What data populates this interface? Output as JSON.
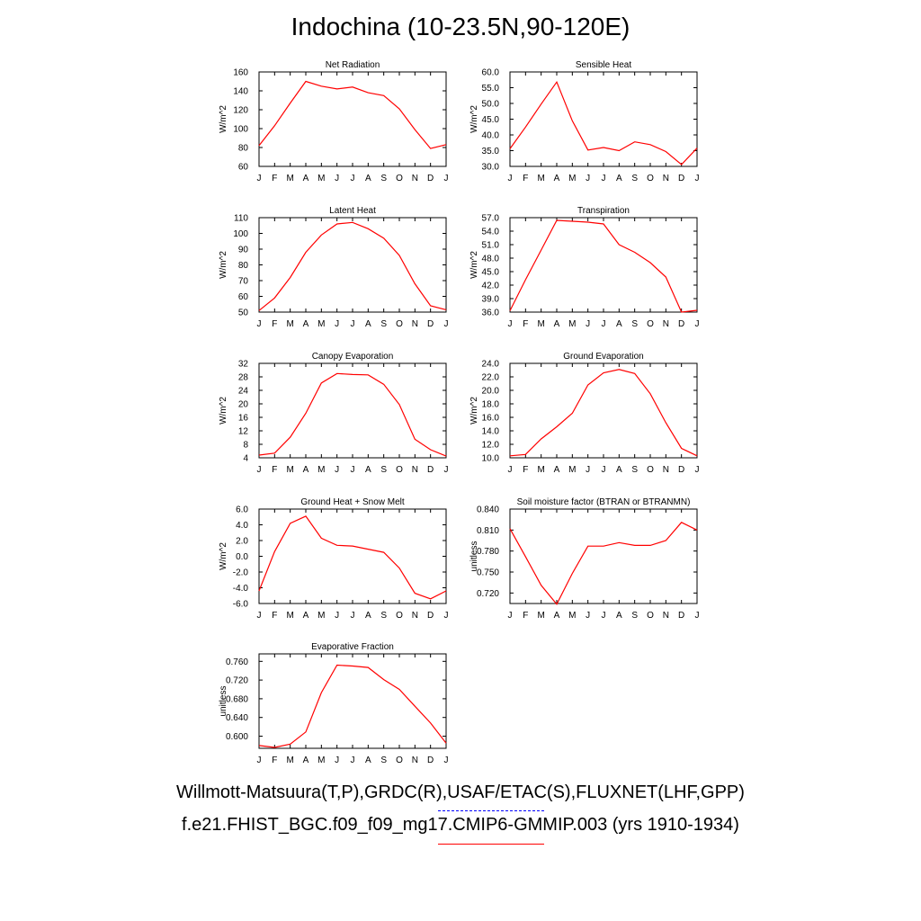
{
  "title": "Indochina (10-23.5N,90-120E)",
  "footer": {
    "obs_label": "Willmott-Matsuura(T,P),GRDC(R),USAF/ETAC(S),FLUXNET(LHF,GPP)",
    "model_label": "f.e21.FHIST_BGC.f09_f09_mg17.CMIP6-GMMIP.003 (yrs 1910-1934)"
  },
  "colors": {
    "model": "#ff0000",
    "obs": "#0000ff",
    "axis": "#000000"
  },
  "chart_data": [
    {
      "type": "line",
      "title": "Net Radiation",
      "ylabel": "W/m^2",
      "ylim": [
        60,
        160
      ],
      "yticks": [
        "60",
        "80",
        "100",
        "120",
        "140",
        "160"
      ],
      "ytick_values": [
        60,
        80,
        100,
        120,
        140,
        160
      ],
      "categories": [
        "J",
        "F",
        "M",
        "A",
        "M",
        "J",
        "J",
        "A",
        "S",
        "O",
        "N",
        "D",
        "J"
      ],
      "series": [
        {
          "values": [
            82,
            103,
            127,
            150,
            145,
            142,
            144,
            138,
            135,
            121,
            99,
            79,
            83
          ]
        }
      ]
    },
    {
      "type": "line",
      "title": "Sensible Heat",
      "ylabel": "W/m^2",
      "ylim": [
        30,
        60
      ],
      "yticks": [
        "30.0",
        "35.0",
        "40.0",
        "45.0",
        "50.0",
        "55.0",
        "60.0"
      ],
      "ytick_values": [
        30,
        35,
        40,
        45,
        50,
        55,
        60
      ],
      "categories": [
        "J",
        "F",
        "M",
        "A",
        "M",
        "J",
        "J",
        "A",
        "S",
        "O",
        "N",
        "D",
        "J"
      ],
      "series": [
        {
          "values": [
            35.6,
            42.5,
            49.8,
            56.8,
            44.5,
            35.2,
            36.0,
            35.0,
            37.8,
            36.9,
            34.7,
            30.6,
            35.8
          ]
        }
      ]
    },
    {
      "type": "line",
      "title": "Latent Heat",
      "ylabel": "W/m^2",
      "ylim": [
        50,
        110
      ],
      "yticks": [
        "50",
        "60",
        "70",
        "80",
        "90",
        "100",
        "110"
      ],
      "ytick_values": [
        50,
        60,
        70,
        80,
        90,
        100,
        110
      ],
      "categories": [
        "J",
        "F",
        "M",
        "A",
        "M",
        "J",
        "J",
        "A",
        "S",
        "O",
        "N",
        "D",
        "J"
      ],
      "series": [
        {
          "values": [
            51,
            59,
            72,
            88,
            99,
            106,
            107,
            103,
            97,
            86,
            68,
            54,
            51.5
          ]
        }
      ]
    },
    {
      "type": "line",
      "title": "Transpiration",
      "ylabel": "W/m^2",
      "ylim": [
        36,
        57
      ],
      "yticks": [
        "36.0",
        "39.0",
        "42.0",
        "45.0",
        "48.0",
        "51.0",
        "54.0",
        "57.0"
      ],
      "ytick_values": [
        36,
        39,
        42,
        45,
        48,
        51,
        54,
        57
      ],
      "categories": [
        "J",
        "F",
        "M",
        "A",
        "M",
        "J",
        "J",
        "A",
        "S",
        "O",
        "N",
        "D",
        "J"
      ],
      "series": [
        {
          "values": [
            36.3,
            43.2,
            49.8,
            56.4,
            56.2,
            56.0,
            55.6,
            51.0,
            49.3,
            47.0,
            43.8,
            36.0,
            36.4
          ]
        }
      ]
    },
    {
      "type": "line",
      "title": "Canopy Evaporation",
      "ylabel": "W/m^2",
      "ylim": [
        4,
        32
      ],
      "yticks": [
        "4",
        "8",
        "12",
        "16",
        "20",
        "24",
        "28",
        "32"
      ],
      "ytick_values": [
        4,
        8,
        12,
        16,
        20,
        24,
        28,
        32
      ],
      "categories": [
        "J",
        "F",
        "M",
        "A",
        "M",
        "J",
        "J",
        "A",
        "S",
        "O",
        "N",
        "D",
        "J"
      ],
      "series": [
        {
          "values": [
            4.8,
            5.4,
            10.1,
            17.2,
            26.2,
            29.0,
            28.7,
            28.6,
            25.8,
            19.8,
            9.5,
            6.4,
            4.5
          ]
        }
      ]
    },
    {
      "type": "line",
      "title": "Ground Evaporation",
      "ylabel": "W/m^2",
      "ylim": [
        10,
        24
      ],
      "yticks": [
        "10.0",
        "12.0",
        "14.0",
        "16.0",
        "18.0",
        "20.0",
        "22.0",
        "24.0"
      ],
      "ytick_values": [
        10,
        12,
        14,
        16,
        18,
        20,
        22,
        24
      ],
      "categories": [
        "J",
        "F",
        "M",
        "A",
        "M",
        "J",
        "J",
        "A",
        "S",
        "O",
        "N",
        "D",
        "J"
      ],
      "series": [
        {
          "values": [
            10.3,
            10.5,
            12.8,
            14.6,
            16.6,
            20.8,
            22.6,
            23.1,
            22.5,
            19.5,
            15.2,
            11.4,
            10.3
          ]
        }
      ]
    },
    {
      "type": "line",
      "title": "Ground Heat + Snow Melt",
      "ylabel": "W/m^2",
      "ylim": [
        -6,
        6
      ],
      "yticks": [
        "-6.0",
        "-4.0",
        "-2.0",
        "0.0",
        "2.0",
        "4.0",
        "6.0"
      ],
      "ytick_values": [
        -6,
        -4,
        -2,
        0,
        2,
        4,
        6
      ],
      "categories": [
        "J",
        "F",
        "M",
        "A",
        "M",
        "J",
        "J",
        "A",
        "S",
        "O",
        "N",
        "D",
        "J"
      ],
      "series": [
        {
          "values": [
            -4.4,
            0.6,
            4.2,
            5.1,
            2.3,
            1.4,
            1.3,
            0.9,
            0.5,
            -1.5,
            -4.7,
            -5.4,
            -4.4
          ]
        }
      ]
    },
    {
      "type": "line",
      "title": "Soil moisture factor (BTRAN or BTRANMN)",
      "ylabel": "unitless",
      "ylim": [
        0.705,
        0.84
      ],
      "yticks": [
        "0.720",
        "0.750",
        "0.780",
        "0.810",
        "0.840"
      ],
      "ytick_values": [
        0.72,
        0.75,
        0.78,
        0.81,
        0.84
      ],
      "categories": [
        "J",
        "F",
        "M",
        "A",
        "M",
        "J",
        "J",
        "A",
        "S",
        "O",
        "N",
        "D",
        "J"
      ],
      "series": [
        {
          "values": [
            0.812,
            0.772,
            0.731,
            0.704,
            0.748,
            0.787,
            0.787,
            0.792,
            0.788,
            0.788,
            0.795,
            0.821,
            0.81
          ]
        }
      ]
    },
    {
      "type": "line",
      "title": "Evaporative Fraction",
      "ylabel": "unitless",
      "ylim": [
        0.574,
        0.776
      ],
      "yticks": [
        "0.600",
        "0.640",
        "0.680",
        "0.720",
        "0.760"
      ],
      "ytick_values": [
        0.6,
        0.64,
        0.68,
        0.72,
        0.76
      ],
      "categories": [
        "J",
        "F",
        "M",
        "A",
        "M",
        "J",
        "J",
        "A",
        "S",
        "O",
        "N",
        "D",
        "J"
      ],
      "series": [
        {
          "values": [
            0.58,
            0.576,
            0.583,
            0.609,
            0.693,
            0.752,
            0.75,
            0.747,
            0.721,
            0.7,
            0.664,
            0.628,
            0.585
          ]
        }
      ]
    }
  ]
}
